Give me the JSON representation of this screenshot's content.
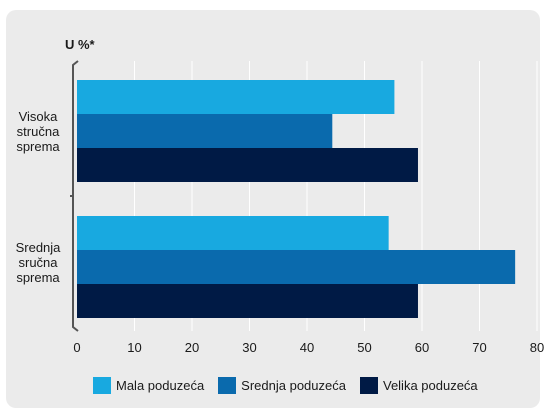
{
  "chart_data": {
    "type": "bar",
    "orientation": "horizontal",
    "unit_label": "U %*",
    "categories": [
      [
        "Visoka",
        "stručna",
        "sprema"
      ],
      [
        "Srednja",
        "sručna",
        "sprema"
      ]
    ],
    "series": [
      {
        "name": "Mala poduzeća",
        "color": "#18a9e0",
        "values": [
          55.2,
          54.2
        ]
      },
      {
        "name": "Srednja poduzeća",
        "color": "#0a6aad",
        "values": [
          44.4,
          76.2
        ]
      },
      {
        "name": "Velika poduzeća",
        "color": "#001a45",
        "values": [
          59.3,
          59.3
        ]
      }
    ],
    "xlim": [
      0,
      80
    ],
    "xticks": [
      0,
      10,
      20,
      30,
      40,
      50,
      60,
      70,
      80
    ],
    "grid": "vertical",
    "legend_position": "bottom"
  }
}
